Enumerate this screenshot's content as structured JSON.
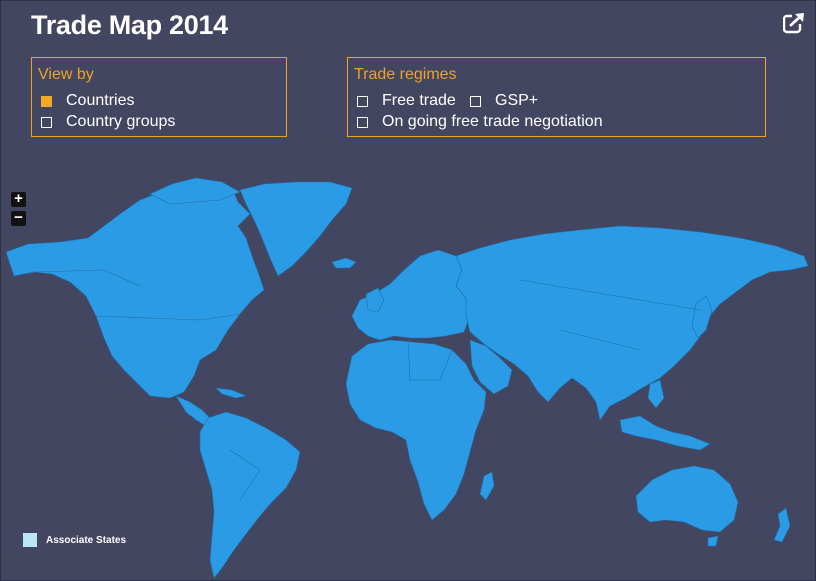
{
  "title": "Trade Map 2014",
  "view_by": {
    "heading": "View by",
    "options": [
      {
        "label": "Countries",
        "checked": true
      },
      {
        "label": "Country groups",
        "checked": false
      }
    ]
  },
  "trade_regimes": {
    "heading": "Trade regimes",
    "options": [
      {
        "label": "Free trade",
        "checked": false
      },
      {
        "label": "GSP+",
        "checked": false
      },
      {
        "label": "On going free trade negotiation",
        "checked": false
      }
    ]
  },
  "zoom": {
    "in": "+",
    "out": "−"
  },
  "legend": {
    "label": "Associate States",
    "color": "#b8e6f5"
  },
  "colors": {
    "background": "#434660",
    "land": "#2b9be6",
    "accent": "#f1a028",
    "checked": "#f1a928"
  },
  "icons": {
    "export": "external-link-icon"
  }
}
